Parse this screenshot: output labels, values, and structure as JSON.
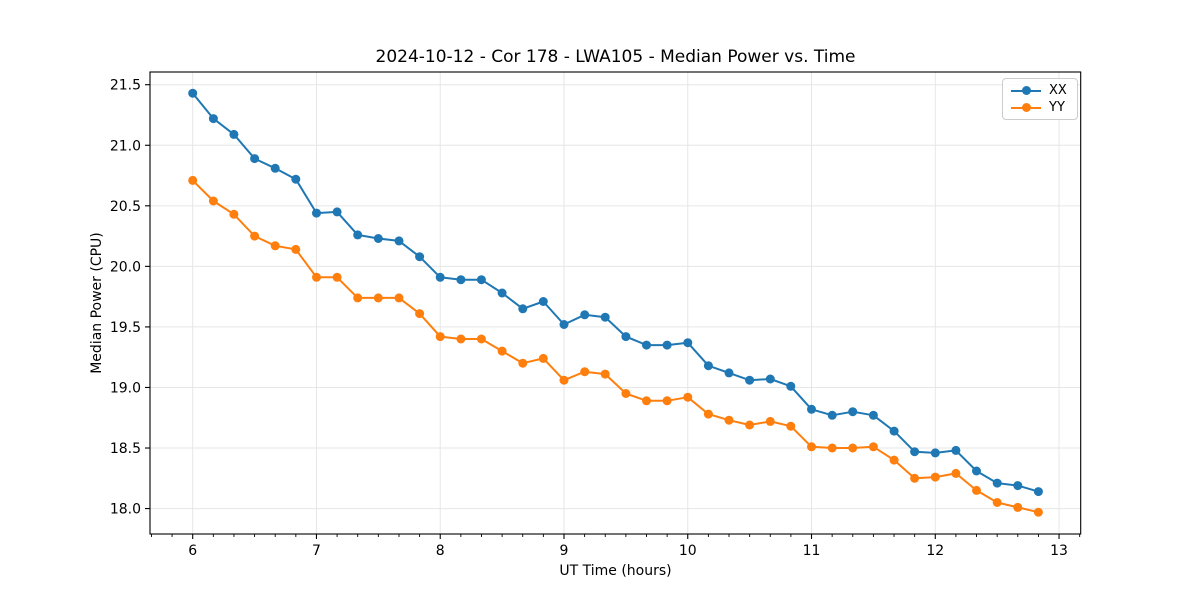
{
  "chart_data": {
    "type": "line",
    "title": "2024-10-12 - Cor 178 - LWA105 - Median Power vs. Time",
    "xlabel": "UT Time (hours)",
    "ylabel": "Median Power (CPU)",
    "xlim": [
      5.655,
      13.175
    ],
    "ylim": [
      17.79,
      21.605
    ],
    "xticks": [
      6,
      7,
      8,
      9,
      10,
      11,
      12,
      13
    ],
    "xtick_labels": [
      "6",
      "7",
      "8",
      "9",
      "10",
      "11",
      "12",
      "13"
    ],
    "yticks": [
      18.0,
      18.5,
      19.0,
      19.5,
      20.0,
      20.5,
      21.0,
      21.5
    ],
    "ytick_labels": [
      "18.0",
      "18.5",
      "19.0",
      "19.5",
      "20.0",
      "20.5",
      "21.0",
      "21.5"
    ],
    "x_minor_step": 0.1666667,
    "grid": true,
    "legend_position": "upper right",
    "x": [
      6.0,
      6.167,
      6.333,
      6.5,
      6.667,
      6.833,
      7.0,
      7.167,
      7.333,
      7.5,
      7.667,
      7.833,
      8.0,
      8.167,
      8.333,
      8.5,
      8.667,
      8.833,
      9.0,
      9.167,
      9.333,
      9.5,
      9.667,
      9.833,
      10.0,
      10.167,
      10.333,
      10.5,
      10.667,
      10.833,
      11.0,
      11.167,
      11.333,
      11.5,
      11.667,
      11.833,
      12.0,
      12.167,
      12.333,
      12.5,
      12.667,
      12.833
    ],
    "series": [
      {
        "name": "XX",
        "color": "#1f77b4",
        "values": [
          21.43,
          21.22,
          21.09,
          20.89,
          20.81,
          20.72,
          20.44,
          20.45,
          20.26,
          20.23,
          20.21,
          20.08,
          19.91,
          19.89,
          19.89,
          19.78,
          19.65,
          19.71,
          19.52,
          19.6,
          19.58,
          19.42,
          19.35,
          19.35,
          19.37,
          19.18,
          19.12,
          19.06,
          19.07,
          19.01,
          18.82,
          18.77,
          18.8,
          18.77,
          18.64,
          18.47,
          18.46,
          18.48,
          18.31,
          18.21,
          18.19,
          18.14
        ]
      },
      {
        "name": "YY",
        "color": "#ff7f0e",
        "values": [
          20.71,
          20.54,
          20.43,
          20.25,
          20.17,
          20.14,
          19.91,
          19.91,
          19.74,
          19.74,
          19.74,
          19.61,
          19.42,
          19.4,
          19.4,
          19.3,
          19.2,
          19.24,
          19.06,
          19.13,
          19.11,
          18.95,
          18.89,
          18.89,
          18.92,
          18.78,
          18.73,
          18.69,
          18.72,
          18.68,
          18.51,
          18.5,
          18.5,
          18.51,
          18.4,
          18.25,
          18.26,
          18.29,
          18.15,
          18.05,
          18.01,
          17.97
        ]
      }
    ]
  },
  "colors": {
    "background": "#ffffff",
    "text": "#000000",
    "grid": "#e6e6e6",
    "spine": "#000000",
    "legend_border": "#cccccc"
  }
}
